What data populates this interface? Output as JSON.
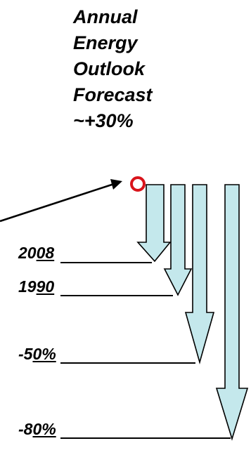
{
  "title": {
    "lines": [
      "Annual",
      "Energy",
      "Outlook",
      "Forecast",
      "~+30%"
    ]
  },
  "levels": [
    {
      "prefix": "20",
      "underlined": "08"
    },
    {
      "prefix": "19",
      "underlined": "90"
    },
    {
      "prefix": "-5",
      "underlined": "0%"
    },
    {
      "prefix": "-8",
      "underlined": "0%"
    }
  ],
  "colors": {
    "arrow_fill": "#c4e8ec",
    "arrow_stroke": "#000000",
    "marker_ring": "#d9141b",
    "text": "#000000"
  },
  "icons": {
    "marker": "circle-marker-icon",
    "pointer": "pointer-arrow-icon"
  }
}
